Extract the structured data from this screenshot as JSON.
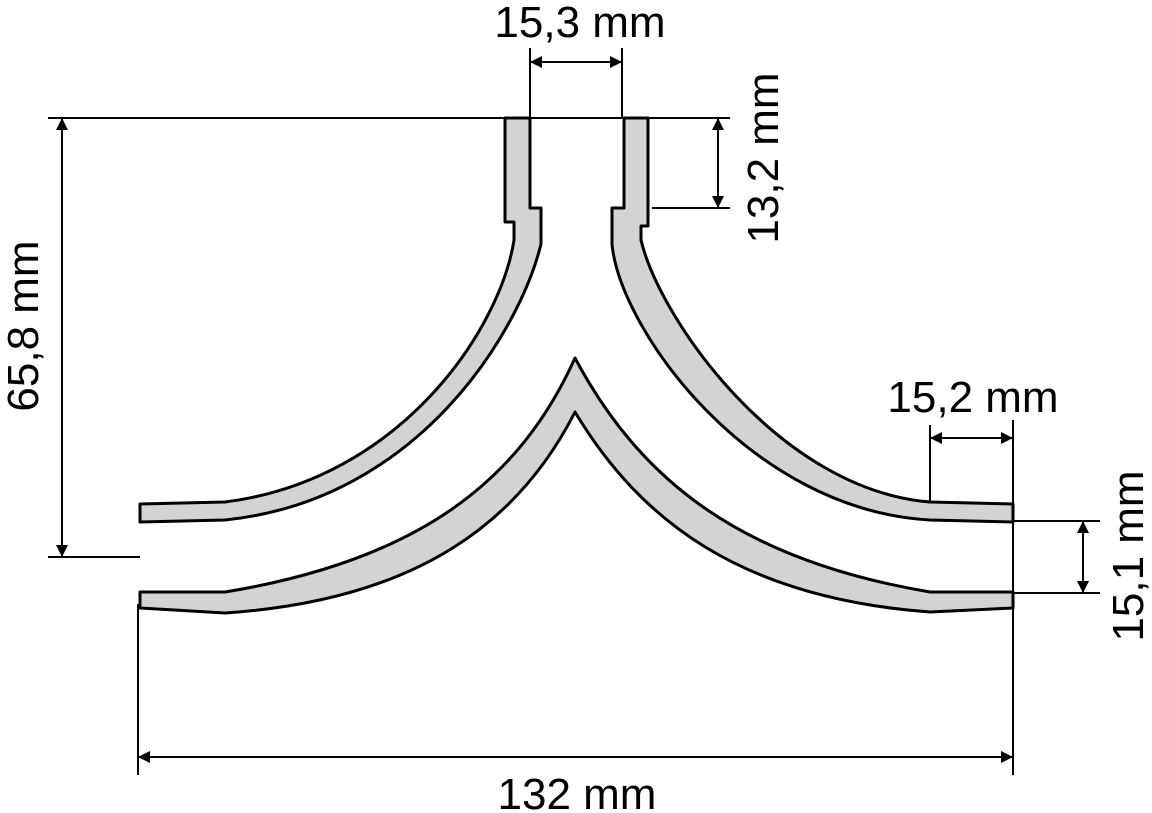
{
  "dimensions": {
    "top_inner_width": "15,3 mm",
    "top_stub_length": "13,2 mm",
    "overall_height": "65,8 mm",
    "right_stub_length": "15,2 mm",
    "right_inner_height": "15,1 mm",
    "overall_width": "132 mm"
  },
  "colors": {
    "wall_fill": "#d3d3d3",
    "line": "#000000",
    "background": "#ffffff"
  }
}
